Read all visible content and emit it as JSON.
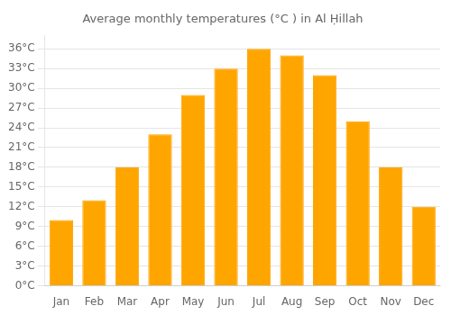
{
  "chart_data": {
    "type": "bar",
    "title": "Average monthly temperatures (°C ) in Al Ḥillah",
    "categories": [
      "Jan",
      "Feb",
      "Mar",
      "Apr",
      "May",
      "Jun",
      "Jul",
      "Aug",
      "Sep",
      "Oct",
      "Nov",
      "Dec"
    ],
    "values": [
      10,
      13,
      18,
      23,
      29,
      33,
      36,
      35,
      32,
      25,
      18,
      12
    ],
    "color": "#FFA500",
    "ylim": [
      0,
      38
    ],
    "yticks": [
      {
        "value": 0,
        "label": "0°C"
      },
      {
        "value": 3,
        "label": "3°C"
      },
      {
        "value": 6,
        "label": "6°C"
      },
      {
        "value": 9,
        "label": "9°C"
      },
      {
        "value": 12,
        "label": "12°C"
      },
      {
        "value": 15,
        "label": "15°C"
      },
      {
        "value": 18,
        "label": "18°C"
      },
      {
        "value": 21,
        "label": "21°C"
      },
      {
        "value": 24,
        "label": "24°C"
      },
      {
        "value": 27,
        "label": "27°C"
      },
      {
        "value": 30,
        "label": "30°C"
      },
      {
        "value": 33,
        "label": "33°C"
      },
      {
        "value": 36,
        "label": "36°C"
      }
    ],
    "grid": true
  }
}
